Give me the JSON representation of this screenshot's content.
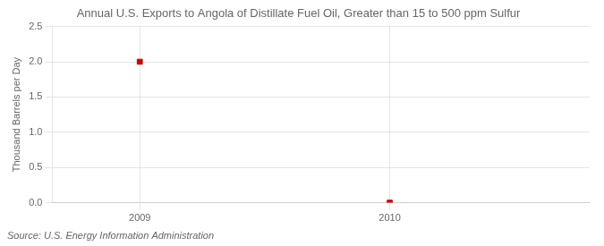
{
  "chart_data": {
    "type": "scatter",
    "title": "Annual U.S. Exports to Angola of Distillate Fuel Oil, Greater than 15 to 500 ppm Sulfur",
    "ylabel": "Thousand Barrels per Day",
    "annotations": [
      "Source: U.S. Energy Information Administration"
    ],
    "x": [
      2009,
      2010
    ],
    "values": [
      2.0,
      0.0
    ],
    "color": "#cc0000",
    "marker": "square",
    "xlim": [
      2008.65,
      2010.8
    ],
    "xticks": [
      2009,
      2010
    ],
    "ylim": [
      0.0,
      2.5
    ],
    "yticks": [
      {
        "value": 0.0,
        "label": "0.0"
      },
      0.5,
      {
        "value": 1.0,
        "label": "1.0"
      },
      1.5,
      {
        "value": 2.0,
        "label": "2.0"
      },
      2.5
    ],
    "grid": true
  }
}
